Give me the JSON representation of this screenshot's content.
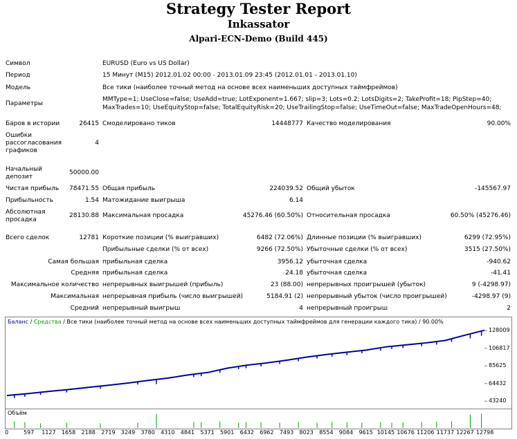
{
  "header": {
    "title": "Strategy Tester Report",
    "expert": "Inkassator",
    "server": "Alpari-ECN-Demo (Build 445)"
  },
  "info": {
    "symbol_label": "Символ",
    "symbol_value": "EURUSD (Euro vs US Dollar)",
    "period_label": "Период",
    "period_value": "15 Минут (M15) 2012.01.02 00:00 - 2013.01.09 23:45 (2012.01.01 - 2013.01.10)",
    "model_label": "Модель",
    "model_value": "Все тики (наиболее точный метод на основе всех наименьших доступных таймфреймов)",
    "params_label": "Параметры",
    "params_line1": "MMType=1; UseClose=false; UseAdd=true; LotExponent=1.667; slip=3; Lots=0.2; LotsDigits=2; TakeProfit=18; PipStep=40;",
    "params_line2": "MaxTrades=10; UseEquityStop=false; TotalEquityRisk=20; UseTrailingStop=false; UseTimeOut=false; MaxTradeOpenHours=48;"
  },
  "stats": {
    "bars_label": "Баров в истории",
    "bars_value": "26415",
    "ticks_label": "Смоделировано тиков",
    "ticks_value": "14448777",
    "quality_label": "Качество моделирования",
    "quality_value": "90.00%",
    "errors_label": "Ошибки рассогласования графиков",
    "errors_value": "4",
    "deposit_label": "Начальный депозит",
    "deposit_value": "50000.00",
    "net_label": "Чистая прибыль",
    "net_value": "78471.55",
    "gross_profit_label": "Общая прибыль",
    "gross_profit_value": "224039.52",
    "gross_loss_label": "Общий убыток",
    "gross_loss_value": "-145567.97",
    "pf_label": "Прибыльность",
    "pf_value": "1.54",
    "payoff_label": "Матожидание выигрыша",
    "payoff_value": "6.14",
    "abs_dd_label": "Абсолютная просадка",
    "abs_dd_value": "28130.88",
    "max_dd_label": "Максимальная просадка",
    "max_dd_value": "45276.46 (60.50%)",
    "rel_dd_label": "Относительная просадка",
    "rel_dd_value": "60.50% (45276.46)",
    "trades_label": "Всего сделок",
    "trades_value": "12781",
    "short_label": "Короткие позиции (% выигравших)",
    "short_value": "6482 (72.06%)",
    "long_label": "Длинные позиции (% выигравших)",
    "long_value": "6299 (72.95%)",
    "profit_trades_label": "Прибыльные сделки (% от всех)",
    "profit_trades_value": "9266 (72.50%)",
    "loss_trades_label": "Убыточные сделки (% от всех)",
    "loss_trades_value": "3515 (27.50%)",
    "largest_label": "Самая большая",
    "largest_profit_label": "прибыльная сделка",
    "largest_profit_value": "3956.12",
    "largest_loss_label": "убыточная сделка",
    "largest_loss_value": "-940.62",
    "average_label": "Средняя",
    "avg_profit_label": "прибыльная сделка",
    "avg_profit_value": "24.18",
    "avg_loss_label": "убыточная сделка",
    "avg_loss_value": "-41.41",
    "max_count_label": "Максимальное количество",
    "max_cons_wins_label": "непрерывных выигрышей (прибыль)",
    "max_cons_wins_value": "23 (88.00)",
    "max_cons_losses_label": "непрерывных проигрышей (убыток)",
    "max_cons_losses_value": "9 (-4298.97)",
    "maximal_label": "Максимальная",
    "maximal_profit_label": "непрерывная прибыль (число выигрышей)",
    "maximal_profit_value": "5184.91 (2)",
    "maximal_loss_label": "непрерывный убыток (число проигрышей)",
    "maximal_loss_value": "-4298.97 (9)",
    "avg_cons_label": "Средний",
    "avg_cons_wins_label": "непрерывный выигрыш",
    "avg_cons_wins_value": "4",
    "avg_cons_losses_label": "непрерывный проигрыш",
    "avg_cons_losses_value": "2"
  },
  "chart_labels": {
    "balance": "Баланс",
    "sep1": " / ",
    "equity": "Средства",
    "rest": " / Все тики (наиболее точный метод на основе всех наименьших доступных таймфреймов для генерации каждого тика) / 90.00%",
    "volume": "Объём"
  },
  "colors": {
    "balance": "#0000a0",
    "equity": "#00a000",
    "volume": "#00a000"
  },
  "chart_data": {
    "type": "line",
    "title": "",
    "xlabel": "",
    "ylabel": "",
    "x_ticks": [
      "0",
      "597",
      "1127",
      "1658",
      "2188",
      "2719",
      "3249",
      "3780",
      "4310",
      "4841",
      "5371",
      "5901",
      "6432",
      "6962",
      "7493",
      "8023",
      "8554",
      "9084",
      "9615",
      "10145",
      "10676",
      "11206",
      "11737",
      "12267",
      "12798"
    ],
    "y_ticks": [
      "128009",
      "106817",
      "85625",
      "64432",
      "43240"
    ],
    "xlim": [
      0,
      12781
    ],
    "ylim": [
      36000,
      134000
    ],
    "series": [
      {
        "name": "Баланс",
        "x": [
          0,
          600,
          1127,
          1658,
          2188,
          2719,
          3249,
          3780,
          4310,
          4841,
          5371,
          5901,
          6432,
          6962,
          7493,
          8023,
          8554,
          9084,
          9615,
          10145,
          10676,
          11206,
          11737,
          12267,
          12781
        ],
        "values": [
          50000,
          52500,
          55000,
          57300,
          59800,
          62400,
          65100,
          68200,
          71000,
          74700,
          77700,
          82900,
          86600,
          89200,
          92500,
          96200,
          99300,
          102000,
          104600,
          108500,
          110800,
          113200,
          116200,
          122600,
          128471.55
        ]
      }
    ],
    "volume_spikes_x": [
      200,
      480,
      900,
      1600,
      2500,
      3500,
      4000,
      5000,
      5200,
      5700,
      6200,
      6400,
      6800,
      7300,
      7800,
      8300,
      8700,
      9100,
      9500,
      10000,
      10300,
      10600,
      11100,
      11500,
      11900,
      12400,
      12700
    ],
    "volume_spikes_v": [
      0.35,
      0.3,
      0.2,
      0.25,
      0.2,
      0.25,
      0.95,
      0.3,
      0.3,
      0.35,
      0.25,
      0.3,
      0.3,
      0.25,
      0.3,
      0.25,
      0.3,
      0.3,
      0.25,
      0.3,
      0.25,
      0.3,
      0.3,
      0.35,
      0.35,
      0.9,
      1.0
    ]
  }
}
